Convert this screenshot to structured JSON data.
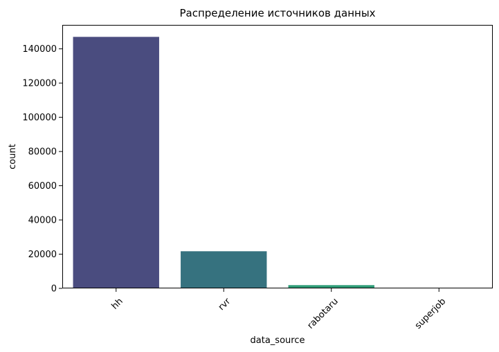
{
  "chart_data": {
    "type": "bar",
    "title": "Распределение источников данных",
    "xlabel": "data_source",
    "ylabel": "count",
    "categories": [
      "hh",
      "rvr",
      "rabotaru",
      "superjob"
    ],
    "values": [
      147000,
      21700,
      1900,
      400
    ],
    "colors": [
      "#482878",
      "#26828e",
      "#35b779",
      "#6ece58"
    ],
    "bar_colors_rendered": [
      "#4a4c7f",
      "#36727f",
      "#2f9c77",
      "#59b33f"
    ],
    "ylim": [
      0,
      154000
    ],
    "yticks": [
      0,
      20000,
      40000,
      60000,
      80000,
      100000,
      120000,
      140000
    ],
    "ytick_labels": [
      "0",
      "20000",
      "40000",
      "60000",
      "80000",
      "100000",
      "120000",
      "140000"
    ],
    "xtick_rotation": 45,
    "grid": false,
    "legend": "none"
  }
}
